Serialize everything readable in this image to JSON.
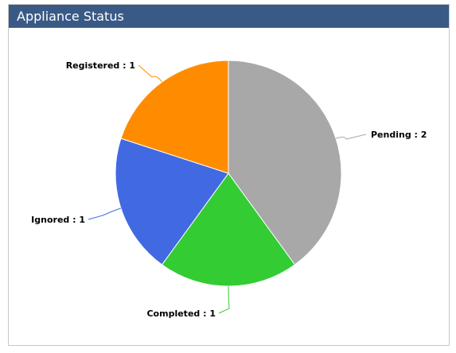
{
  "panel": {
    "title": "Appliance Status"
  },
  "chart_data": {
    "type": "pie",
    "title": "Appliance Status",
    "slices": [
      {
        "label": "Pending : 2",
        "name": "Pending",
        "value": 2,
        "color": "#a8a8a8"
      },
      {
        "label": "Completed : 1",
        "name": "Completed",
        "value": 1,
        "color": "#33cc33"
      },
      {
        "label": "Ignored : 1",
        "name": "Ignored",
        "value": 1,
        "color": "#4169e1"
      },
      {
        "label": "Registered : 1",
        "name": "Registered",
        "value": 1,
        "color": "#ff8c00"
      }
    ],
    "start_angle_deg": 0,
    "direction": "clockwise"
  }
}
